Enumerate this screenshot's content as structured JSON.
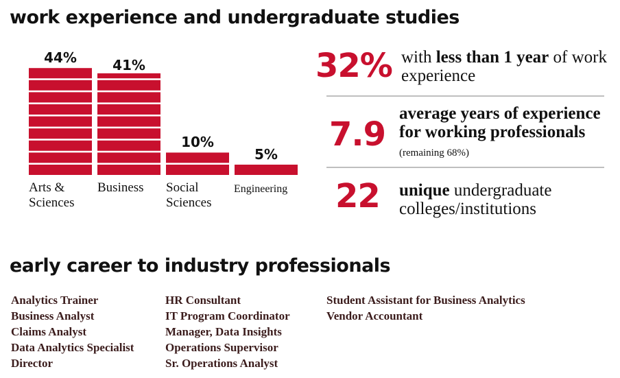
{
  "sections": {
    "experience_title": "work experience and undergraduate studies",
    "careers_title": "early career to industry professionals"
  },
  "colors": {
    "accent": "#c8102e",
    "divider": "#bfbfbf",
    "career_text": "#3b1c1c"
  },
  "chart_data": {
    "type": "bar",
    "categories": [
      "Arts & Sciences",
      "Business",
      "Social Sciences",
      "Engineering"
    ],
    "values": [
      44,
      41,
      10,
      5
    ],
    "value_labels": [
      "44%",
      "41%",
      "10%",
      "5%"
    ],
    "unit": "%",
    "title": "",
    "xlabel": "",
    "ylabel": "",
    "ylim": [
      0,
      44
    ],
    "grid": false,
    "bar_style": "stacked horizontal segments"
  },
  "stats": [
    {
      "number": "32%",
      "parts": [
        {
          "text": "with ",
          "bold": false
        },
        {
          "text": "less than 1 year",
          "bold": true
        },
        {
          "text": " of work experience",
          "bold": false
        }
      ]
    },
    {
      "number": "7.9",
      "parts": [
        {
          "text": "average years of experience for working professionals",
          "bold": true
        },
        {
          "text": " ",
          "bold": false
        },
        {
          "text": "(remaining 68%)",
          "bold": false,
          "note": true
        }
      ]
    },
    {
      "number": "22",
      "parts": [
        {
          "text": "unique",
          "bold": true
        },
        {
          "text": " undergraduate colleges/institutions",
          "bold": false
        }
      ]
    }
  ],
  "careers": {
    "col1": [
      "Analytics Trainer",
      "Business Analyst",
      "Claims Analyst",
      "Data Analytics Specialist",
      "Director"
    ],
    "col2": [
      "HR Consultant",
      "IT Program Coordinator",
      "Manager, Data Insights",
      "Operations Supervisor",
      "Sr. Operations Analyst"
    ],
    "col3": [
      "Student Assistant for Business Analytics",
      "Vendor Accountant"
    ]
  }
}
